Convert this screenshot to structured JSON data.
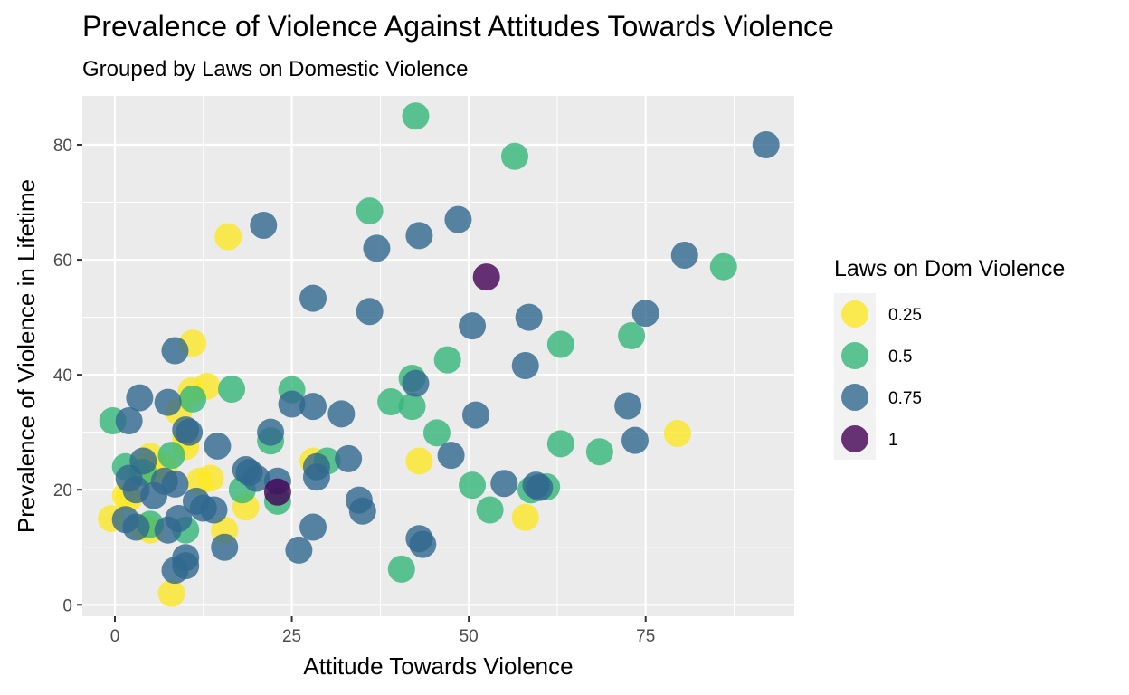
{
  "chart_data": {
    "type": "scatter",
    "title": "Prevalence of Violence Against Attitudes Towards Violence",
    "subtitle": "Grouped by Laws on Domestic Violence",
    "xlabel": "Attitude Towards Violence",
    "ylabel": "Prevalence of Violence in Lifetime",
    "xlim": [
      -4.6,
      96
    ],
    "ylim": [
      -2,
      88.5
    ],
    "x_ticks": [
      0,
      25,
      50,
      75
    ],
    "y_ticks": [
      0,
      20,
      40,
      60,
      80
    ],
    "x_tick_labels": [
      "0",
      "25",
      "50",
      "75"
    ],
    "y_tick_labels": [
      "0",
      "20",
      "40",
      "60",
      "80"
    ],
    "grid": true,
    "legend": {
      "title": "Laws on Dom Violence",
      "position": "right",
      "entries": [
        {
          "label": "0.25",
          "color": "#FDE725"
        },
        {
          "label": "0.5",
          "color": "#35B779"
        },
        {
          "label": "0.75",
          "color": "#31688E"
        },
        {
          "label": "1",
          "color": "#440154"
        }
      ]
    },
    "series": [
      {
        "name": "0.25",
        "color": "#FDE725",
        "points": [
          [
            16,
            64
          ],
          [
            11,
            45.5
          ],
          [
            13,
            38
          ],
          [
            10.8,
            37.2
          ],
          [
            9,
            33.6
          ],
          [
            10,
            29
          ],
          [
            10,
            27.5
          ],
          [
            5,
            25.8
          ],
          [
            7,
            24
          ],
          [
            4,
            23.8
          ],
          [
            5,
            23
          ],
          [
            1.5,
            19
          ],
          [
            2,
            18.5
          ],
          [
            -0.5,
            15
          ],
          [
            4,
            13.5
          ],
          [
            5,
            13
          ],
          [
            13.5,
            22
          ],
          [
            12,
            21.5
          ],
          [
            18.5,
            17
          ],
          [
            15.5,
            13
          ],
          [
            8,
            2
          ],
          [
            28,
            25
          ],
          [
            43,
            25
          ],
          [
            79.5,
            29.8
          ],
          [
            58,
            15.2
          ]
        ]
      },
      {
        "name": "0.5",
        "color": "#35B779",
        "points": [
          [
            42.5,
            85
          ],
          [
            56.5,
            78
          ],
          [
            36,
            68.5
          ],
          [
            86,
            58.8
          ],
          [
            73,
            46.8
          ],
          [
            63,
            45.3
          ],
          [
            47,
            42.6
          ],
          [
            42,
            39.4
          ],
          [
            16.5,
            37.5
          ],
          [
            25,
            37.4
          ],
          [
            39,
            35.3
          ],
          [
            42,
            34.5
          ],
          [
            11,
            35.8
          ],
          [
            -0.3,
            32
          ],
          [
            22,
            28.5
          ],
          [
            30,
            25
          ],
          [
            45.5,
            29.9
          ],
          [
            63,
            28
          ],
          [
            68.5,
            26.6
          ],
          [
            8,
            26
          ],
          [
            1.5,
            24
          ],
          [
            4,
            23
          ],
          [
            18,
            20
          ],
          [
            23,
            18
          ],
          [
            50.5,
            20.8
          ],
          [
            58.8,
            20
          ],
          [
            61,
            20.5
          ],
          [
            53,
            16.5
          ],
          [
            10,
            13
          ],
          [
            40.5,
            6.2
          ],
          [
            5,
            14
          ]
        ]
      },
      {
        "name": "0.75",
        "color": "#31688E",
        "points": [
          [
            92,
            80
          ],
          [
            21,
            66
          ],
          [
            48.5,
            67
          ],
          [
            43,
            64.2
          ],
          [
            37,
            62
          ],
          [
            80.5,
            60.8
          ],
          [
            28,
            53.3
          ],
          [
            36,
            51
          ],
          [
            75,
            50.7
          ],
          [
            58.5,
            50
          ],
          [
            50.5,
            48.5
          ],
          [
            8.5,
            44.2
          ],
          [
            58,
            41.6
          ],
          [
            42.5,
            38.5
          ],
          [
            3.5,
            36
          ],
          [
            7.5,
            35.2
          ],
          [
            25,
            34.9
          ],
          [
            28,
            34.5
          ],
          [
            32,
            33.2
          ],
          [
            51,
            33
          ],
          [
            72.5,
            34.6
          ],
          [
            73.5,
            28.6
          ],
          [
            2,
            32
          ],
          [
            10,
            30.4
          ],
          [
            10.5,
            30
          ],
          [
            14.5,
            27.6
          ],
          [
            18.5,
            23.5
          ],
          [
            19,
            23
          ],
          [
            20,
            22
          ],
          [
            22,
            30
          ],
          [
            23,
            21.5
          ],
          [
            28.5,
            24
          ],
          [
            28.5,
            22.2
          ],
          [
            33,
            25.4
          ],
          [
            47.5,
            26
          ],
          [
            55,
            21.1
          ],
          [
            59.5,
            20.8
          ],
          [
            60,
            20.4
          ],
          [
            4,
            25
          ],
          [
            2,
            22
          ],
          [
            3,
            20
          ],
          [
            5.5,
            19
          ],
          [
            7,
            21.5
          ],
          [
            8.5,
            21
          ],
          [
            11.5,
            18
          ],
          [
            12.5,
            16.8
          ],
          [
            14,
            16.5
          ],
          [
            9,
            15
          ],
          [
            1.5,
            14.8
          ],
          [
            3,
            13.5
          ],
          [
            7.5,
            13
          ],
          [
            34.5,
            18.2
          ],
          [
            35,
            16.3
          ],
          [
            28,
            13.5
          ],
          [
            43,
            11.5
          ],
          [
            43.5,
            10.5
          ],
          [
            26,
            9.5
          ],
          [
            15.5,
            10
          ],
          [
            10,
            8.2
          ],
          [
            10,
            6.8
          ],
          [
            8.5,
            6
          ]
        ]
      },
      {
        "name": "1",
        "color": "#440154",
        "points": [
          [
            52.5,
            57
          ],
          [
            23,
            19.6
          ]
        ]
      }
    ]
  }
}
